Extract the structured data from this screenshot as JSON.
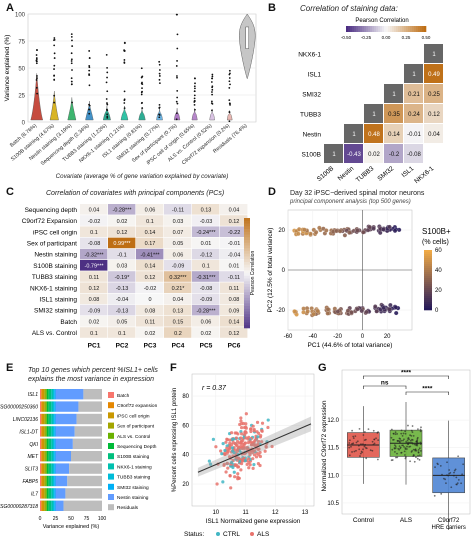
{
  "panel_labels": [
    "A",
    "B",
    "C",
    "D",
    "E",
    "F",
    "G"
  ],
  "chart_data": [
    {
      "panel": "A",
      "type": "violin",
      "ylabel": "Variance explained (%)",
      "xlabel": "Covariate (average % of gene variation explained by covariate)",
      "ylim": [
        0,
        100
      ],
      "yticks": [
        0,
        25,
        50,
        75,
        100
      ],
      "categories": [
        "Batch (8.76%)",
        "S100B staining (4.67%)",
        "Nestin staining (3.19%)",
        "Sequencing depth (2.34%)",
        "TUBB3 staining (1.22%)",
        "NKX6-1 staining (1.21%)",
        "ISL1 staining (0.81%)",
        "SMI32 staining (0.77%)",
        "Sex of participant (0.7%)",
        "iPSC cell of origin (0.65%)",
        "ALS vs. Control (0.52%)",
        "C9orf72 expansion (0.2%)",
        "Residuals (76.4%)"
      ],
      "values": [
        8.76,
        4.67,
        3.19,
        2.34,
        1.22,
        1.21,
        0.81,
        0.77,
        0.7,
        0.65,
        0.52,
        0.2,
        76.4
      ],
      "colors": [
        "#c0392b",
        "#d4ac0d",
        "#27ae60",
        "#2e86c1",
        "#16a085",
        "#1abc9c",
        "#17a589",
        "#5dade2",
        "#a569bd",
        "#af7ac5",
        "#d7bde2",
        "#e6b0aa",
        "#bdbdbd"
      ]
    },
    {
      "panel": "B",
      "type": "heatmap",
      "title": "Correlation of staining data:",
      "legend_title": "Pearson Correlation",
      "legend_ticks": [
        "-0.50",
        "-0.25",
        "0.00",
        "0.25",
        "0.50"
      ],
      "row_labels": [
        "NKX6-1",
        "ISL1",
        "SMI32",
        "TUBB3",
        "Nestin",
        "S100B"
      ],
      "col_labels": [
        "S100B",
        "Nestin",
        "TUBB3",
        "SMI32",
        "ISL1",
        "NKX6-1"
      ],
      "cells": [
        [
          "",
          "",
          "",
          "",
          "",
          "1"
        ],
        [
          "",
          "",
          "",
          "",
          "1",
          "0.49"
        ],
        [
          "",
          "",
          "",
          "1",
          "0.21",
          "0.25"
        ],
        [
          "",
          "",
          "1",
          "0.35",
          "0.24",
          "0.12"
        ],
        [
          "",
          "1",
          "0.48",
          "0.14",
          "-0.01",
          "0.04"
        ],
        [
          "1",
          "-0.43",
          "0.02",
          "-0.2",
          "-0.08",
          ""
        ]
      ]
    },
    {
      "panel": "C",
      "type": "heatmap",
      "title": "Correlation of covariates with principal components (PCs)",
      "legend_title": "Pearson Correlation",
      "legend_ticks": [
        "-0.75",
        "-0.50",
        "-0.25",
        "0.00",
        "0.25",
        "0.50",
        "0.75"
      ],
      "row_labels": [
        "Sequencing depth",
        "C9orf72 Expansion",
        "iPSC cell origin",
        "Sex of participant",
        "Nestin staining",
        "S100B staining",
        "TUBB3 staining",
        "NKX6-1 staining",
        "ISL1 staining",
        "SMI32 staining",
        "Batch",
        "ALS vs. Control"
      ],
      "col_labels": [
        "PC1",
        "PC2",
        "PC3",
        "PC4",
        "PC5",
        "PC6"
      ],
      "cells": [
        [
          "0.04",
          "-0.28***",
          "0.06",
          "-0.11",
          "0.13",
          "0.04"
        ],
        [
          "-0.02",
          "0.02",
          "0.1",
          "0.03",
          "-0.03",
          "0.12"
        ],
        [
          "0.1",
          "0.12",
          "0.14",
          "0.07",
          "-0.24***",
          "-0.22"
        ],
        [
          "-0.08",
          "0.99***",
          "0.17",
          "0.05",
          "0.01",
          "-0.01"
        ],
        [
          "-0.32***",
          "-0.1",
          "-0.41***",
          "0.06",
          "-0.12",
          "-0.04"
        ],
        [
          "-0.79***",
          "0.03",
          "0.14",
          "-0.09",
          "0.1",
          "0.01"
        ],
        [
          "0.11",
          "-0.19*",
          "0.12",
          "0.32***",
          "-0.31***",
          "-0.11"
        ],
        [
          "0.12",
          "-0.13",
          "-0.02",
          "0.21*",
          "-0.08",
          "0.11"
        ],
        [
          "0.08",
          "-0.04",
          "0",
          "0.04",
          "-0.09",
          "0.08"
        ],
        [
          "-0.09",
          "-0.13",
          "0.08",
          "0.13",
          "-0.28***",
          "0.09"
        ],
        [
          "0.02",
          "0.05",
          "0.11",
          "0.15",
          "0.06",
          "0.14"
        ],
        [
          "0.1",
          "0.1",
          "0.02",
          "0.2",
          "0.02",
          "0.12"
        ]
      ]
    },
    {
      "panel": "D",
      "type": "scatter",
      "title": "Day 32 iPSC−derived spinal motor neurons",
      "subtitle": "principal component analysis (top 500 genes)",
      "xlabel": "PC1 (44.6% of total variance)",
      "ylabel": "PC2 (12.5% of total variance)",
      "xlim": [
        -60,
        40
      ],
      "ylim": [
        -30,
        30
      ],
      "xticks": [
        -60,
        -40,
        -20,
        0,
        20
      ],
      "yticks": [
        -20,
        0,
        20
      ],
      "legend_title": "S100B+ (% cells)",
      "legend_ticks": [
        "60",
        "40",
        "20",
        "0"
      ]
    },
    {
      "panel": "E",
      "type": "stacked-bar",
      "title": "Top 10 genes which percent %ISL1+ cells explains the most variance in expression",
      "xlabel": "Variance explained (%)",
      "xticks": [
        "0",
        "25",
        "50",
        "75",
        "100"
      ],
      "categories": [
        "ISL1",
        "ENSG00000250360",
        "LINC02136",
        "ISL1-DT",
        "QKI",
        "MET",
        "SLIT3",
        "FABP5",
        "IL7",
        "ENSG00000287318"
      ],
      "legend": [
        "Batch",
        "C9orf72 expansion",
        "iPSC cell origin",
        "Sex of participant",
        "ALS vs. Control",
        "Sequencing Depth",
        "S100B staining",
        "NKX6-1 staining",
        "TUBB3 staining",
        "SMI32 staining",
        "Nestin staining",
        "Residuals"
      ],
      "legend_colors": [
        "#f8766d",
        "#e58700",
        "#c99800",
        "#a3a500",
        "#6bb100",
        "#00ba38",
        "#00bf7d",
        "#00c0af",
        "#00bcd8",
        "#00b0f6",
        "#619cff",
        "#bdbdbd"
      ]
    },
    {
      "panel": "F",
      "type": "scatter",
      "annotation": "r = 0.37",
      "xlabel": "ISL1 Normalized gene expression",
      "ylabel": "%Percent cells expressing ISL1 protein",
      "xticks": [
        "10",
        "11",
        "12",
        "13"
      ],
      "yticks": [
        "20",
        "40",
        "60",
        "80"
      ],
      "legend_title": "Status:",
      "legend": [
        "CTRL",
        "ALS"
      ]
    },
    {
      "panel": "G",
      "type": "boxplot",
      "ylabel": "Normalized C9orf72 expression",
      "categories": [
        "Control",
        "ALS",
        "C9orf72 HRE carriers"
      ],
      "medians": [
        11.55,
        11.58,
        11.0
      ],
      "colors": [
        "#e0574b",
        "#6ab23a",
        "#4f86d4"
      ],
      "yticks": [
        "10.5",
        "11.0",
        "11.5",
        "12.0"
      ],
      "ylim": [
        10.3,
        12.4
      ],
      "significance": [
        "****",
        "ns",
        "****"
      ]
    }
  ]
}
